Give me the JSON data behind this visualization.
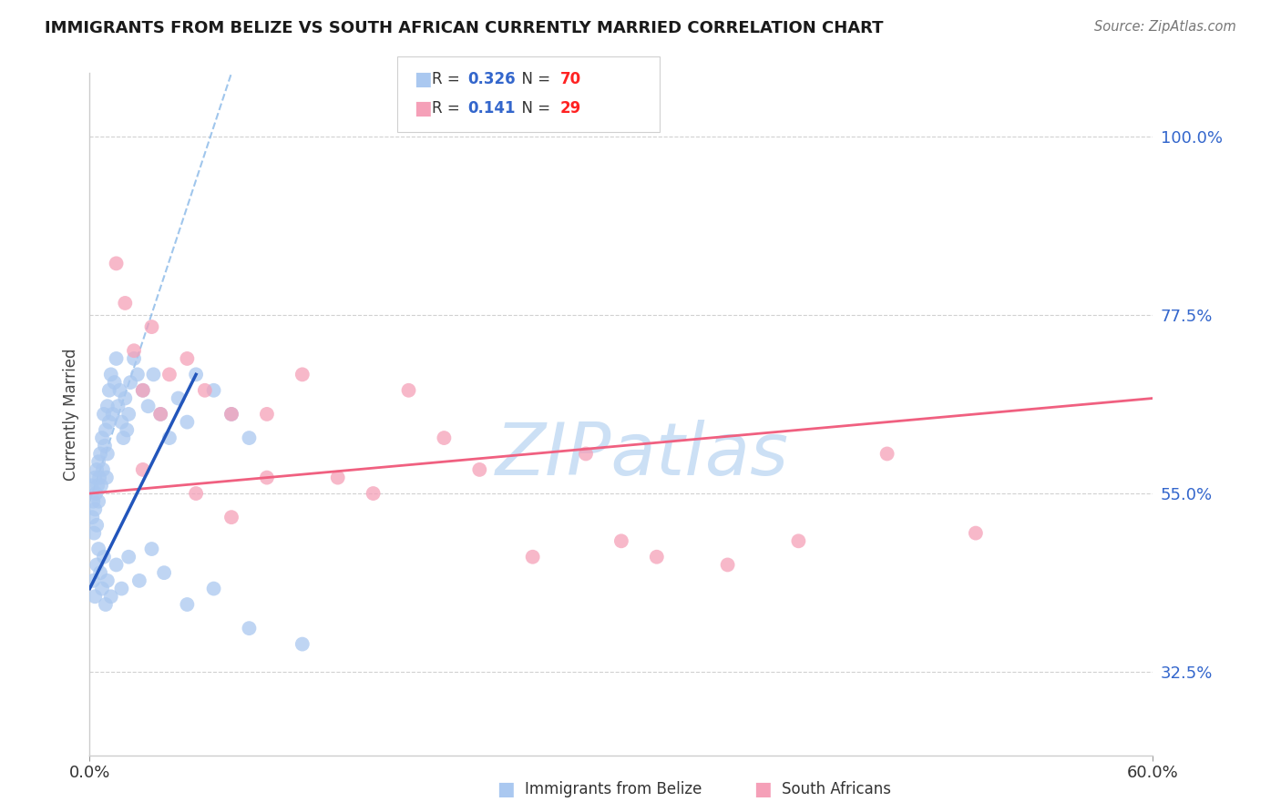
{
  "title": "IMMIGRANTS FROM BELIZE VS SOUTH AFRICAN CURRENTLY MARRIED CORRELATION CHART",
  "source": "Source: ZipAtlas.com",
  "ylabel": "Currently Married",
  "y_ticks": [
    32.5,
    55.0,
    77.5,
    100.0
  ],
  "xlim": [
    0.0,
    60.0
  ],
  "ylim": [
    22.0,
    108.0
  ],
  "belize_x": [
    0.1,
    0.15,
    0.2,
    0.25,
    0.3,
    0.3,
    0.35,
    0.4,
    0.4,
    0.45,
    0.5,
    0.5,
    0.55,
    0.6,
    0.65,
    0.7,
    0.75,
    0.8,
    0.85,
    0.9,
    0.95,
    1.0,
    1.0,
    1.1,
    1.1,
    1.2,
    1.3,
    1.4,
    1.5,
    1.6,
    1.7,
    1.8,
    1.9,
    2.0,
    2.1,
    2.2,
    2.3,
    2.5,
    2.7,
    3.0,
    3.3,
    3.6,
    4.0,
    4.5,
    5.0,
    5.5,
    6.0,
    7.0,
    8.0,
    9.0,
    0.2,
    0.3,
    0.4,
    0.5,
    0.6,
    0.7,
    0.8,
    0.9,
    1.0,
    1.2,
    1.5,
    1.8,
    2.2,
    2.8,
    3.5,
    4.2,
    5.5,
    7.0,
    9.0,
    12.0
  ],
  "belize_y": [
    56.0,
    52.0,
    54.0,
    50.0,
    57.0,
    53.0,
    55.0,
    58.0,
    51.0,
    56.0,
    59.0,
    54.0,
    57.0,
    60.0,
    56.0,
    62.0,
    58.0,
    65.0,
    61.0,
    63.0,
    57.0,
    66.0,
    60.0,
    68.0,
    64.0,
    70.0,
    65.0,
    69.0,
    72.0,
    66.0,
    68.0,
    64.0,
    62.0,
    67.0,
    63.0,
    65.0,
    69.0,
    72.0,
    70.0,
    68.0,
    66.0,
    70.0,
    65.0,
    62.0,
    67.0,
    64.0,
    70.0,
    68.0,
    65.0,
    62.0,
    44.0,
    42.0,
    46.0,
    48.0,
    45.0,
    43.0,
    47.0,
    41.0,
    44.0,
    42.0,
    46.0,
    43.0,
    47.0,
    44.0,
    48.0,
    45.0,
    41.0,
    43.0,
    38.0,
    36.0
  ],
  "sa_x": [
    1.5,
    2.5,
    3.0,
    3.5,
    4.5,
    5.5,
    6.5,
    8.0,
    10.0,
    12.0,
    14.0,
    16.0,
    18.0,
    20.0,
    22.0,
    25.0,
    28.0,
    32.0,
    36.0,
    40.0,
    45.0,
    50.0,
    2.0,
    3.0,
    4.0,
    6.0,
    8.0,
    10.0,
    30.0
  ],
  "sa_y": [
    84.0,
    73.0,
    68.0,
    76.0,
    70.0,
    72.0,
    68.0,
    65.0,
    65.0,
    70.0,
    57.0,
    55.0,
    68.0,
    62.0,
    58.0,
    47.0,
    60.0,
    47.0,
    46.0,
    49.0,
    60.0,
    50.0,
    79.0,
    58.0,
    65.0,
    55.0,
    52.0,
    57.0,
    49.0
  ],
  "belize_color": "#aac8f0",
  "sa_color": "#f5a0b8",
  "belize_line_color": "#2255bb",
  "sa_line_color": "#f06080",
  "ref_line_color": "#88b8e8",
  "background_color": "#ffffff",
  "watermark_text": "ZIPatlas",
  "watermark_color": "#cce0f5",
  "legend_R_color": "#3366cc",
  "legend_N_color": "#ff2222",
  "legend_R1": "0.326",
  "legend_N1": "70",
  "legend_R2": "0.141",
  "legend_N2": "29"
}
